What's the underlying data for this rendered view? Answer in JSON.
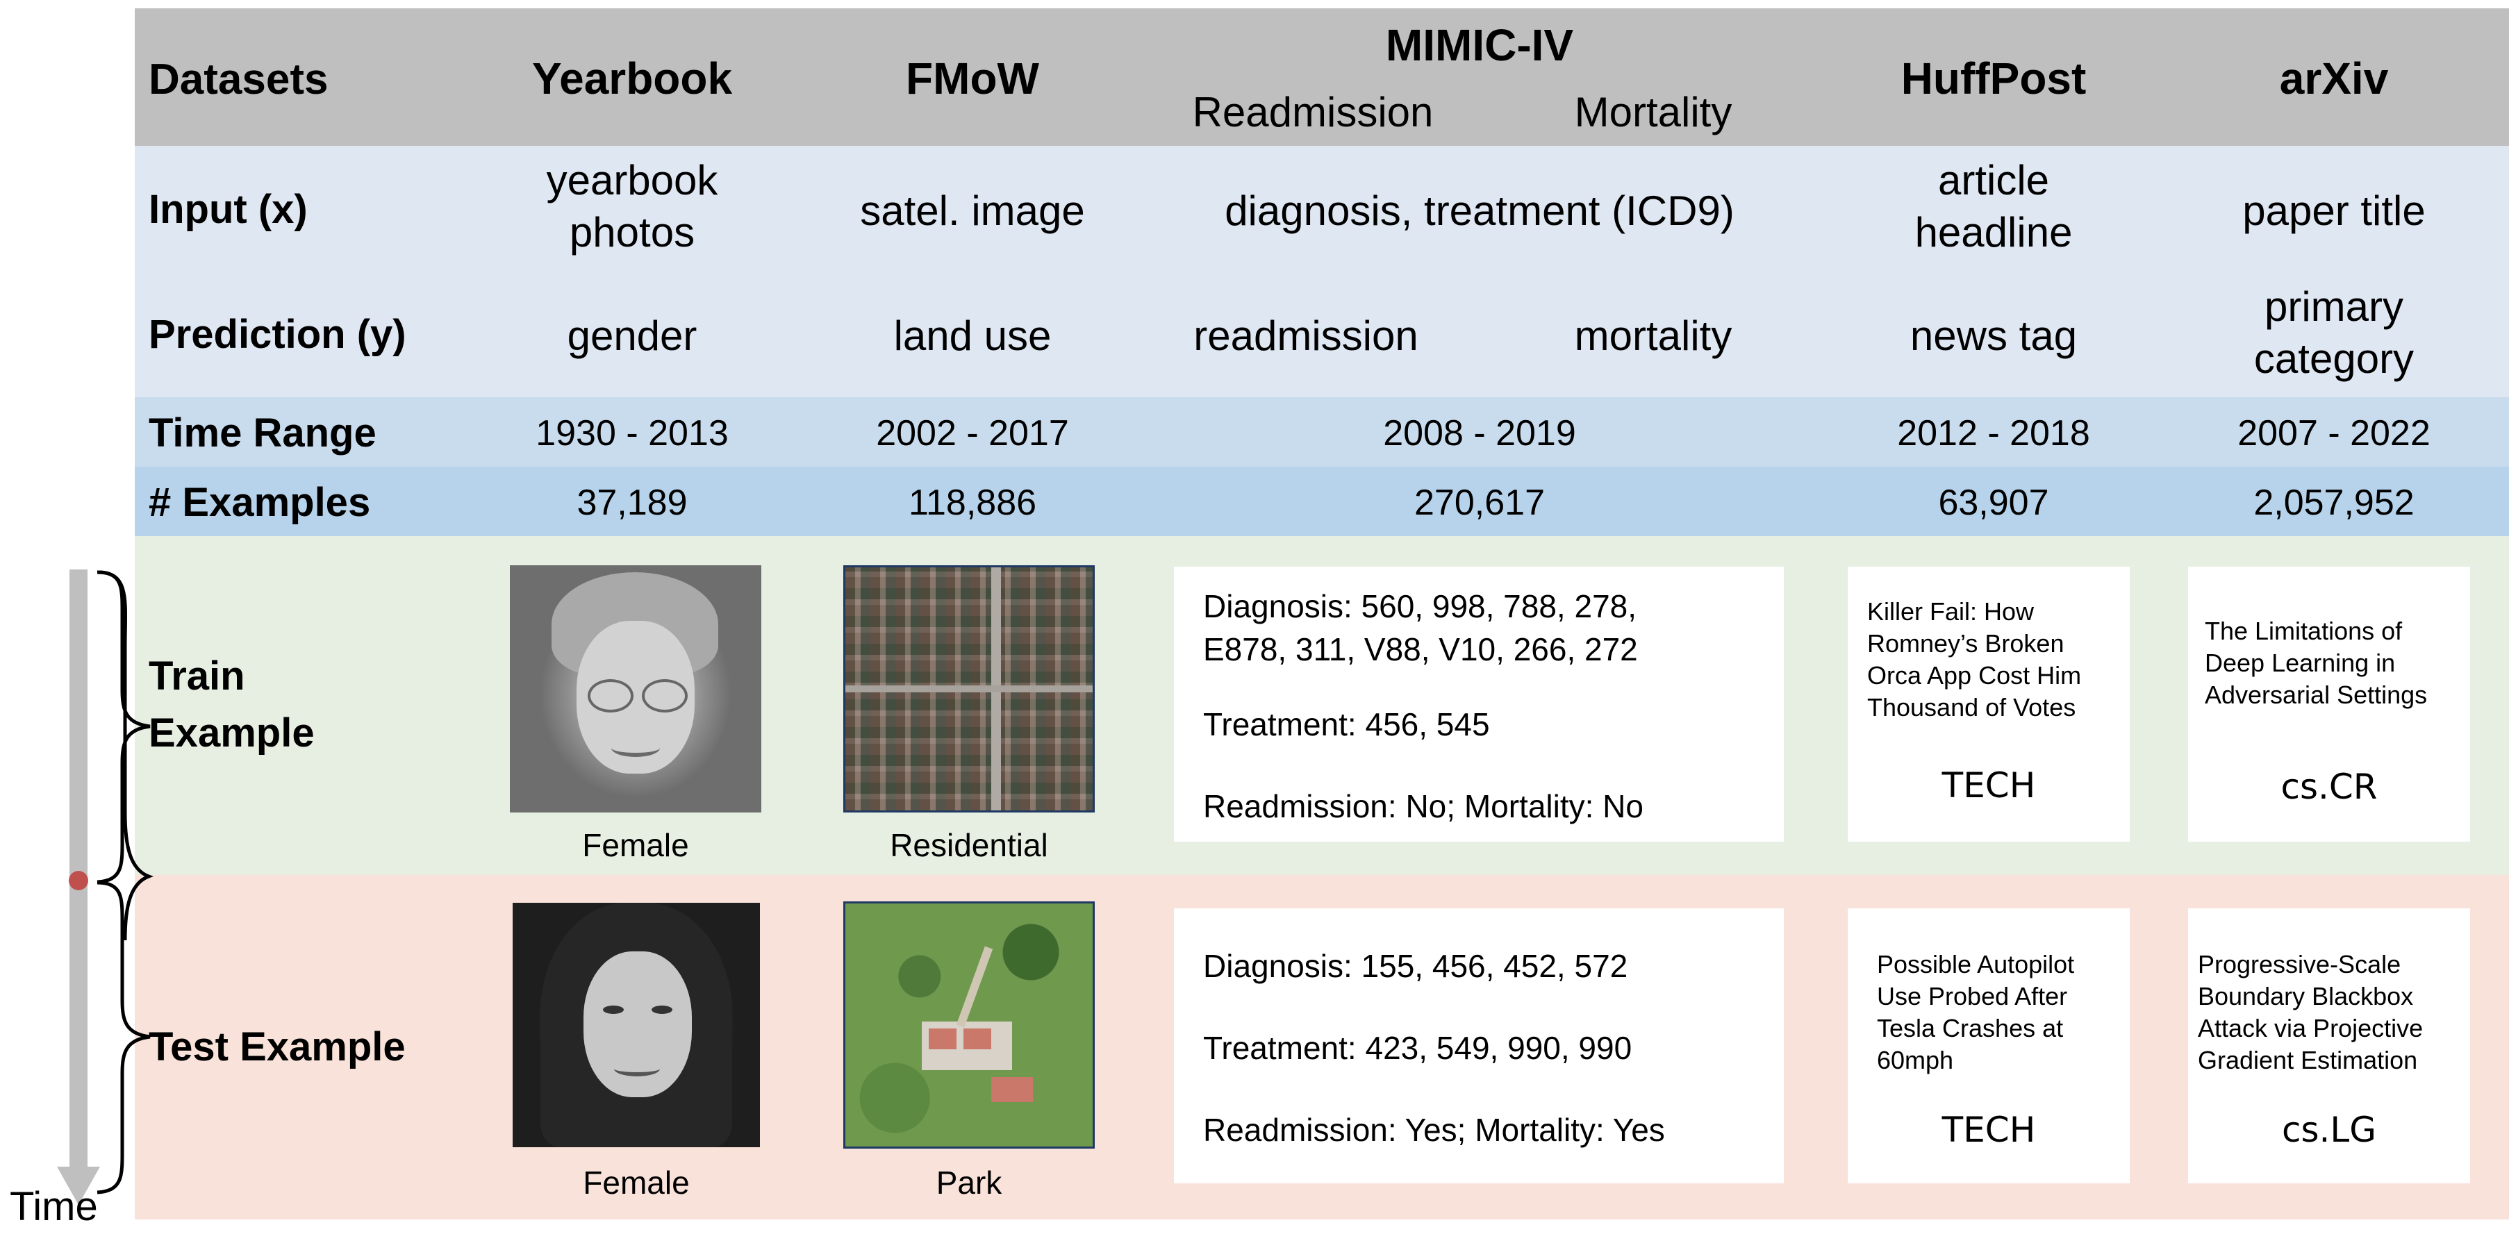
{
  "header": {
    "datasets_label": "Datasets",
    "yearbook": "Yearbook",
    "fmow": "FMoW",
    "mimic": "MIMIC-IV",
    "mimic_sub_readmission": "Readmission",
    "mimic_sub_mortality": "Mortality",
    "huffpost": "HuffPost",
    "arxiv": "arXiv"
  },
  "input_row": {
    "label": "Input (x)",
    "yearbook": "yearbook photos",
    "fmow": "satel. image",
    "mimic": "diagnosis, treatment (ICD9)",
    "huffpost": "article headline",
    "arxiv": "paper title"
  },
  "prediction_row": {
    "label": "Prediction (y)",
    "yearbook": "gender",
    "fmow": "land use",
    "mimic_readmission": "readmission",
    "mimic_mortality": "mortality",
    "huffpost": "news tag",
    "arxiv": "primary category"
  },
  "time_range_row": {
    "label": "Time Range",
    "yearbook": "1930 - 2013",
    "fmow": "2002 - 2017",
    "mimic": "2008 - 2019",
    "huffpost": "2012 - 2018",
    "arxiv": "2007 - 2022"
  },
  "examples_row": {
    "label": "# Examples",
    "yearbook": "37,189",
    "fmow": "118,886",
    "mimic": "270,617",
    "huffpost": "63,907",
    "arxiv": "2,057,952"
  },
  "train": {
    "label_line1": "Train",
    "label_line2": "Example",
    "yearbook_caption": "Female",
    "fmow_caption": "Residential",
    "mimic_diagnosis_line1": "Diagnosis: 560, 998, 788, 278,",
    "mimic_diagnosis_line2": "E878, 311, V88, V10, 266, 272",
    "mimic_treatment": "Treatment: 456, 545",
    "mimic_outcome": "Readmission: No; Mortality: No",
    "huffpost_headline_lines": [
      "Killer Fail: How",
      "Romney’s Broken",
      "Orca App Cost Him",
      "Thousand of Votes"
    ],
    "huffpost_tag": "TECH",
    "arxiv_title_lines": [
      "The Limitations of",
      "Deep Learning in",
      "Adversarial Settings"
    ],
    "arxiv_tag": "cs.CR"
  },
  "test": {
    "label": "Test Example",
    "yearbook_caption": "Female",
    "fmow_caption": "Park",
    "mimic_diagnosis": "Diagnosis: 155, 456, 452, 572",
    "mimic_treatment": "Treatment: 423, 549, 990, 990",
    "mimic_outcome": "Readmission: Yes; Mortality: Yes",
    "huffpost_headline_lines": [
      "Possible Autopilot",
      "Use Probed After",
      "Tesla Crashes at",
      "60mph"
    ],
    "huffpost_tag": "TECH",
    "arxiv_title_lines": [
      "Progressive-Scale",
      "Boundary Blackbox",
      "Attack via Projective",
      "Gradient Estimation"
    ],
    "arxiv_tag": "cs.LG"
  },
  "timeline": {
    "label": "Time"
  },
  "colors": {
    "header_bg": "#bfbfbf",
    "input_prediction_bg": "#dfe7f3",
    "time_range_bg": "#c9dcee",
    "examples_bg": "#b6d3eb",
    "train_bg": "#e6efe2",
    "test_bg": "#f9e2d9",
    "timeline_dot": "#c0504d",
    "timeline_bar": "#bfbfbf"
  },
  "icons": {
    "train_brace": "curly-brace",
    "test_brace": "curly-brace",
    "time_arrow": "down-arrow",
    "split_dot": "dot"
  }
}
